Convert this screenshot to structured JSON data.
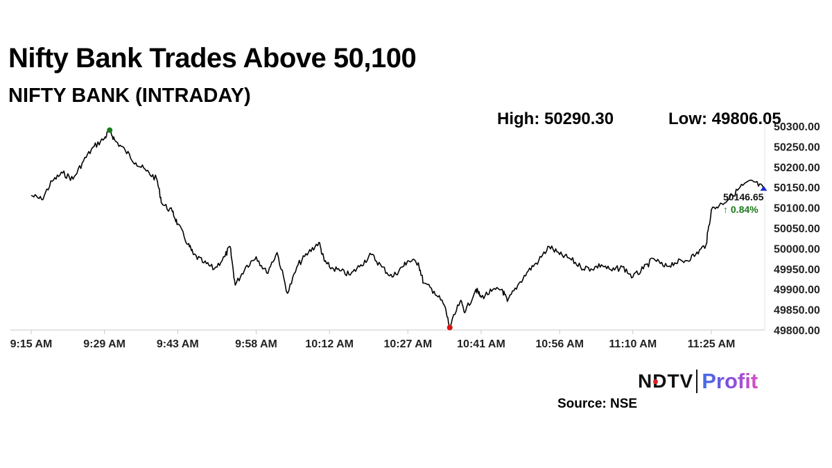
{
  "header": {
    "title": "Nifty Bank Trades Above 50,100",
    "subtitle": "NIFTY BANK (INTRADAY)"
  },
  "stats": {
    "high": "High: 50290.30",
    "low": "Low: 49806.05"
  },
  "chart_data": {
    "type": "line",
    "x_tick_labels": [
      "9:15 AM",
      "9:29 AM",
      "9:43 AM",
      "9:58 AM",
      "10:12 AM",
      "10:27 AM",
      "10:41 AM",
      "10:56 AM",
      "11:10 AM",
      "11:25 AM"
    ],
    "y_tick_labels": [
      "50300.00",
      "50250.00",
      "50200.00",
      "50150.00",
      "50100.00",
      "50050.00",
      "50000.00",
      "49950.00",
      "49900.00",
      "49850.00",
      "49800.00"
    ],
    "ylim": [
      49800,
      50300
    ],
    "series": [
      {
        "values": [
          {
            "x": "9:15 AM",
            "y": 50130
          },
          {
            "x": "9:17 AM",
            "y": 50120
          },
          {
            "x": "9:19 AM",
            "y": 50165
          },
          {
            "x": "9:21 AM",
            "y": 50185
          },
          {
            "x": "9:23 AM",
            "y": 50170
          },
          {
            "x": "9:25 AM",
            "y": 50215
          },
          {
            "x": "9:27 AM",
            "y": 50250
          },
          {
            "x": "9:29 AM",
            "y": 50270
          },
          {
            "x": "9:30 AM",
            "y": 50290.3
          },
          {
            "x": "9:31 AM",
            "y": 50265
          },
          {
            "x": "9:33 AM",
            "y": 50240
          },
          {
            "x": "9:35 AM",
            "y": 50210
          },
          {
            "x": "9:37 AM",
            "y": 50190
          },
          {
            "x": "9:39 AM",
            "y": 50170
          },
          {
            "x": "9:40 AM",
            "y": 50110
          },
          {
            "x": "9:42 AM",
            "y": 50090
          },
          {
            "x": "9:43 AM",
            "y": 50060
          },
          {
            "x": "9:45 AM",
            "y": 50010
          },
          {
            "x": "9:46 AM",
            "y": 49985
          },
          {
            "x": "9:48 AM",
            "y": 49965
          },
          {
            "x": "9:50 AM",
            "y": 49950
          },
          {
            "x": "9:52 AM",
            "y": 49980
          },
          {
            "x": "9:53 AM",
            "y": 50005
          },
          {
            "x": "9:54 AM",
            "y": 49910
          },
          {
            "x": "9:56 AM",
            "y": 49955
          },
          {
            "x": "9:58 AM",
            "y": 49980
          },
          {
            "x": "10:00 AM",
            "y": 49940
          },
          {
            "x": "10:02 AM",
            "y": 49990
          },
          {
            "x": "10:04 AM",
            "y": 49890
          },
          {
            "x": "10:06 AM",
            "y": 49960
          },
          {
            "x": "10:08 AM",
            "y": 49990
          },
          {
            "x": "10:10 AM",
            "y": 50015
          },
          {
            "x": "10:11 AM",
            "y": 49970
          },
          {
            "x": "10:12 AM",
            "y": 49955
          },
          {
            "x": "10:14 AM",
            "y": 49945
          },
          {
            "x": "10:16 AM",
            "y": 49935
          },
          {
            "x": "10:18 AM",
            "y": 49960
          },
          {
            "x": "10:20 AM",
            "y": 49985
          },
          {
            "x": "10:22 AM",
            "y": 49955
          },
          {
            "x": "10:24 AM",
            "y": 49930
          },
          {
            "x": "10:26 AM",
            "y": 49955
          },
          {
            "x": "10:27 AM",
            "y": 49970
          },
          {
            "x": "10:29 AM",
            "y": 49965
          },
          {
            "x": "10:30 AM",
            "y": 49915
          },
          {
            "x": "10:32 AM",
            "y": 49895
          },
          {
            "x": "10:34 AM",
            "y": 49860
          },
          {
            "x": "10:35 AM",
            "y": 49806.05
          },
          {
            "x": "10:37 AM",
            "y": 49870
          },
          {
            "x": "10:38 AM",
            "y": 49845
          },
          {
            "x": "10:40 AM",
            "y": 49900
          },
          {
            "x": "10:41 AM",
            "y": 49880
          },
          {
            "x": "10:43 AM",
            "y": 49895
          },
          {
            "x": "10:45 AM",
            "y": 49900
          },
          {
            "x": "10:46 AM",
            "y": 49870
          },
          {
            "x": "10:48 AM",
            "y": 49910
          },
          {
            "x": "10:50 AM",
            "y": 49945
          },
          {
            "x": "10:52 AM",
            "y": 49970
          },
          {
            "x": "10:54 AM",
            "y": 50005
          },
          {
            "x": "10:56 AM",
            "y": 49985
          },
          {
            "x": "10:58 AM",
            "y": 49975
          },
          {
            "x": "11:00 AM",
            "y": 49955
          },
          {
            "x": "11:02 AM",
            "y": 49950
          },
          {
            "x": "11:04 AM",
            "y": 49960
          },
          {
            "x": "11:06 AM",
            "y": 49945
          },
          {
            "x": "11:08 AM",
            "y": 49955
          },
          {
            "x": "11:10 AM",
            "y": 49930
          },
          {
            "x": "11:12 AM",
            "y": 49950
          },
          {
            "x": "11:14 AM",
            "y": 49975
          },
          {
            "x": "11:16 AM",
            "y": 49955
          },
          {
            "x": "11:18 AM",
            "y": 49965
          },
          {
            "x": "11:20 AM",
            "y": 49970
          },
          {
            "x": "11:22 AM",
            "y": 49985
          },
          {
            "x": "11:24 AM",
            "y": 50010
          },
          {
            "x": "11:25 AM",
            "y": 50095
          },
          {
            "x": "11:27 AM",
            "y": 50110
          },
          {
            "x": "11:29 AM",
            "y": 50130
          },
          {
            "x": "11:31 AM",
            "y": 50155
          },
          {
            "x": "11:33 AM",
            "y": 50165
          },
          {
            "x": "11:35 AM",
            "y": 50146.65
          }
        ]
      }
    ],
    "last_value": "50146.65",
    "change": "↑ 0.84%",
    "high_value": 50290.3,
    "low_value": 49806.05,
    "colors": {
      "line": "#000000",
      "high_marker": "#1a7a1a",
      "low_marker": "#e01010",
      "last_marker": "#1a2bd6",
      "change_text": "#1a7a1a"
    },
    "grid": false
  },
  "logo": {
    "brand": "NDTV",
    "product": "Profit"
  },
  "footer": {
    "source": "Source: NSE"
  }
}
